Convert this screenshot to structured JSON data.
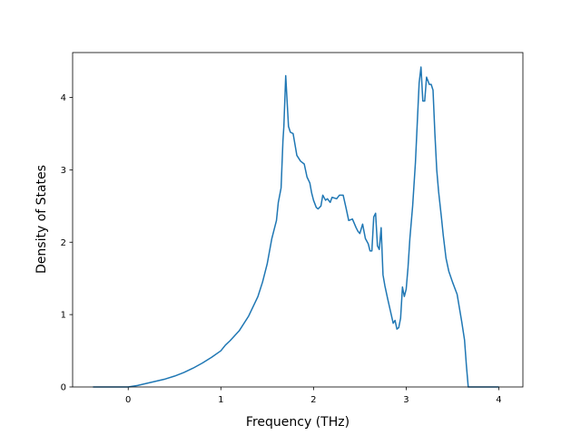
{
  "chart_data": {
    "type": "line",
    "xlabel": "Frequency (THz)",
    "ylabel": "Density of States",
    "xlim": [
      -0.6,
      4.26
    ],
    "ylim": [
      0,
      4.62
    ],
    "xticks": [
      0,
      1,
      2,
      3,
      4
    ],
    "yticks": [
      0,
      1,
      2,
      3,
      4
    ],
    "grid": false,
    "series": [
      {
        "color": "#1f77b4",
        "x": [
          -0.38,
          -0.2,
          0.0,
          0.1,
          0.2,
          0.3,
          0.4,
          0.5,
          0.6,
          0.7,
          0.8,
          0.9,
          1.0,
          1.05,
          1.1,
          1.2,
          1.3,
          1.4,
          1.45,
          1.5,
          1.55,
          1.6,
          1.62,
          1.65,
          1.67,
          1.68,
          1.7,
          1.73,
          1.75,
          1.78,
          1.82,
          1.86,
          1.9,
          1.93,
          1.96,
          1.98,
          2.0,
          2.03,
          2.05,
          2.08,
          2.1,
          2.13,
          2.15,
          2.18,
          2.2,
          2.25,
          2.28,
          2.32,
          2.35,
          2.38,
          2.42,
          2.46,
          2.48,
          2.5,
          2.53,
          2.56,
          2.59,
          2.61,
          2.63,
          2.65,
          2.67,
          2.69,
          2.71,
          2.73,
          2.75,
          2.77,
          2.8,
          2.83,
          2.86,
          2.88,
          2.9,
          2.92,
          2.94,
          2.96,
          2.98,
          3.0,
          3.02,
          3.04,
          3.07,
          3.1,
          3.14,
          3.16,
          3.18,
          3.2,
          3.22,
          3.25,
          3.27,
          3.29,
          3.31,
          3.33,
          3.35,
          3.38,
          3.4,
          3.43,
          3.46,
          3.5,
          3.55,
          3.6,
          3.63,
          3.65,
          3.67,
          3.7,
          3.8,
          4.0
        ],
        "values": [
          0.0,
          0.0,
          0.0,
          0.02,
          0.05,
          0.08,
          0.11,
          0.15,
          0.2,
          0.26,
          0.33,
          0.41,
          0.5,
          0.58,
          0.64,
          0.78,
          0.98,
          1.25,
          1.45,
          1.7,
          2.05,
          2.3,
          2.55,
          2.75,
          3.4,
          3.6,
          4.3,
          3.6,
          3.52,
          3.5,
          3.2,
          3.12,
          3.08,
          2.9,
          2.82,
          2.68,
          2.58,
          2.48,
          2.46,
          2.5,
          2.65,
          2.58,
          2.6,
          2.55,
          2.62,
          2.6,
          2.65,
          2.65,
          2.48,
          2.3,
          2.32,
          2.2,
          2.15,
          2.12,
          2.25,
          2.05,
          1.98,
          1.88,
          1.88,
          2.35,
          2.4,
          1.95,
          1.9,
          2.2,
          1.55,
          1.4,
          1.22,
          1.05,
          0.88,
          0.92,
          0.8,
          0.82,
          0.95,
          1.38,
          1.25,
          1.35,
          1.65,
          2.05,
          2.5,
          3.1,
          4.2,
          4.42,
          3.95,
          3.95,
          4.28,
          4.18,
          4.18,
          4.1,
          3.5,
          3.0,
          2.7,
          2.35,
          2.1,
          1.78,
          1.6,
          1.45,
          1.28,
          0.9,
          0.65,
          0.3,
          0.0,
          0.0,
          0.0,
          0.0
        ]
      }
    ]
  }
}
